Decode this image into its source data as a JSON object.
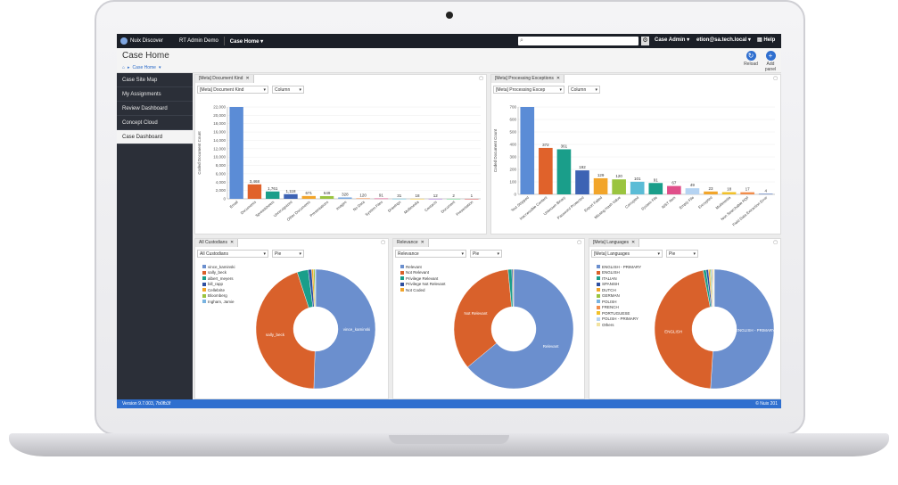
{
  "app": {
    "product": "Nuix Discover",
    "case_name": "RT Admin Demo",
    "case_menu": "Case Home",
    "search_placeholder": "",
    "user_menu": "Case Admin",
    "email": "etion@sa.tech.local",
    "help": "Help"
  },
  "header": {
    "title": "Case Home",
    "breadcrumb": "Case Home",
    "reload_label": "Reload",
    "add_panel_label": "Add panel"
  },
  "sidebar": {
    "items": [
      {
        "label": "Case Site Map",
        "active": false
      },
      {
        "label": "My Assignments",
        "active": false
      },
      {
        "label": "Review Dashboard",
        "active": false
      },
      {
        "label": "Concept Cloud",
        "active": false
      },
      {
        "label": "Case Dashboard",
        "active": true
      }
    ]
  },
  "panels": {
    "doc_kind": {
      "tab": "[Meta] Document Kind",
      "field": "[Meta] Document Kind",
      "chart_type": "Column"
    },
    "proc_exc": {
      "tab": "[Meta] Processing Exceptions",
      "field": "[Meta] Processing Excep",
      "chart_type": "Column"
    },
    "custodians": {
      "tab": "All Custodians",
      "field": "All Custodians",
      "chart_type": "Pie"
    },
    "relevance": {
      "tab": "Relevance",
      "field": "Relevance",
      "chart_type": "Pie"
    },
    "languages": {
      "tab": "[Meta] Languages",
      "field": "[Meta] Languages",
      "chart_type": "Pie"
    }
  },
  "footer": {
    "version": "Version 9.7.003, 7b0fb3f",
    "copyright": "© Nuix 201"
  },
  "chart_data": [
    {
      "type": "bar",
      "ylabel": "Coded Document Count",
      "ylim": [
        0,
        22000
      ],
      "yticks": [
        "0",
        "2,000",
        "4,000",
        "6,000",
        "8,000",
        "10,000",
        "12,000",
        "14,000",
        "16,000",
        "18,000",
        "20,000",
        "22,000"
      ],
      "categories": [
        "Email",
        "Documents",
        "Spreadsheets",
        "Unrecognized",
        "Other Documents",
        "Presentations",
        "Images",
        "No Data",
        "System Files",
        "Drawings",
        "Multimedia",
        "Contacts",
        "Document",
        "Presentation"
      ],
      "values": [
        22700,
        3468,
        1761,
        1118,
        671,
        649,
        328,
        120,
        91,
        31,
        18,
        12,
        2,
        1
      ],
      "data_labels": [
        "",
        "3,468",
        "1,761",
        "1,118",
        "671",
        "649",
        "328",
        "120",
        "91",
        "31",
        "18",
        "12",
        "2",
        "1"
      ],
      "colors": [
        "#5b8cd6",
        "#e0622b",
        "#1a9e8a",
        "#3d63b4",
        "#f2a52a",
        "#9ac43f",
        "#79a8e0",
        "#f28d4b",
        "#e04f8a",
        "#5bbcd6",
        "#f2c12a",
        "#a36cd6",
        "#6cd68e",
        "#d65b5b"
      ],
      "legend": "none"
    },
    {
      "type": "bar",
      "ylabel": "Coded Document Count",
      "ylim": [
        0,
        700
      ],
      "yticks": [
        "0",
        "100",
        "200",
        "300",
        "400",
        "500",
        "600",
        "700"
      ],
      "categories": [
        "Text Stripped",
        "Inaccessible Content",
        "Unknown Binary",
        "Password Protected",
        "Export Failed",
        "Missing Hash Value",
        "Corrupted",
        "System File",
        "NIST Item",
        "Empty File",
        "Encrypted",
        "Multimedia",
        "Non Searchable PDF",
        "Field Data Extraction Error"
      ],
      "values": [
        720,
        372,
        361,
        192,
        129,
        120,
        101,
        91,
        67,
        49,
        23,
        18,
        17,
        4
      ],
      "data_labels": [
        "",
        "372",
        "361",
        "192",
        "129",
        "120",
        "101",
        "91",
        "67",
        "49",
        "23",
        "18",
        "17",
        "4"
      ],
      "colors": [
        "#5b8cd6",
        "#e0622b",
        "#1a9e8a",
        "#3d63b4",
        "#f2a52a",
        "#9ac43f",
        "#5bbcd6",
        "#1a9e8a",
        "#e04f8a",
        "#b5d3f2",
        "#f2a52a",
        "#f2c12a",
        "#f28d4b",
        "#3d63b4"
      ],
      "legend": "none"
    },
    {
      "type": "pie",
      "series": [
        {
          "name": "All Custodians",
          "values": [
            50.5,
            44.5,
            3.0,
            0.9,
            0.5,
            0.4,
            0.2
          ]
        }
      ],
      "categories": [
        "vince_kaminski",
        "sally_beck",
        "albert_meyers",
        "bill_rapp",
        "Cellebrite",
        "Bloomberg",
        "Ingham, Jamie"
      ],
      "slice_labels": [
        "vince_kaminski",
        "sally_beck"
      ],
      "colors": [
        "#6b8fce",
        "#d9612b",
        "#1a9e8a",
        "#2f4fa0",
        "#f2a52a",
        "#9ac43f",
        "#79b3e0"
      ],
      "legend": "left"
    },
    {
      "type": "pie",
      "series": [
        {
          "name": "Relevance",
          "values": [
            64,
            34.5,
            1.0,
            0.3,
            0.2
          ]
        }
      ],
      "categories": [
        "Relevant",
        "Not Relevant",
        "Privilege Relevant",
        "Privilege Not Relevant",
        "Not Coded"
      ],
      "slice_labels": [
        "Relevant",
        "Not Relevant"
      ],
      "colors": [
        "#6b8fce",
        "#d9612b",
        "#1a9e8a",
        "#2f4fa0",
        "#f2a52a"
      ],
      "legend": "left"
    },
    {
      "type": "pie",
      "series": [
        {
          "name": "[Meta] Languages",
          "values": [
            51,
            46,
            0.8,
            0.6,
            0.4,
            0.3,
            0.3,
            0.2,
            0.2,
            0.1,
            0.1
          ]
        }
      ],
      "categories": [
        "ENGLISH - PRIMARY",
        "ENGLISH",
        "ITALIAN",
        "SPANISH",
        "DUTCH",
        "GERMAN",
        "POLISH",
        "FRENCH",
        "PORTUGUESE",
        "POLISH - PRIMARY",
        "Others"
      ],
      "slice_labels": [
        "ENGLISH - PRIMARY",
        "ENGLISH"
      ],
      "colors": [
        "#6b8fce",
        "#d9612b",
        "#1a9e8a",
        "#2f4fa0",
        "#f2a52a",
        "#9ac43f",
        "#79b3e0",
        "#f28d4b",
        "#f2c12a",
        "#b5d3f2",
        "#f2e3a0"
      ],
      "legend": "left"
    }
  ]
}
